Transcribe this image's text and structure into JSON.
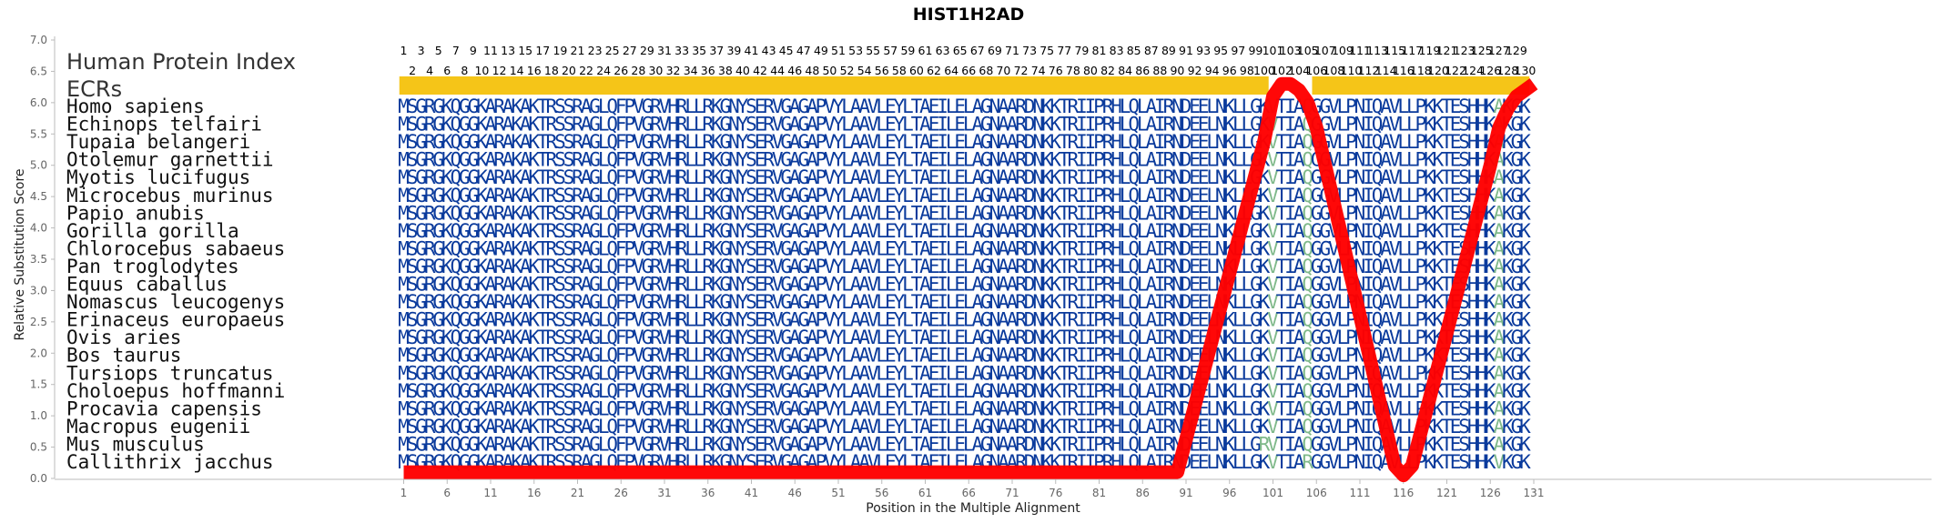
{
  "chart_data": {
    "type": "line",
    "title": "HIST1H2AD",
    "xlabel": "Position in the Multiple Alignment",
    "ylabel": "Relative Substitution Score",
    "ylim": [
      0,
      7
    ],
    "xlim": [
      1,
      131
    ],
    "yticks": [
      "0.0",
      "0.5",
      "1.0",
      "1.5",
      "2.0",
      "2.5",
      "3.0",
      "3.5",
      "4.0",
      "4.5",
      "5.0",
      "5.5",
      "6.0",
      "6.5",
      "7.0"
    ],
    "xticks": [
      1,
      6,
      11,
      16,
      21,
      26,
      31,
      36,
      41,
      46,
      51,
      56,
      61,
      66,
      71,
      76,
      81,
      86,
      91,
      96,
      101,
      106,
      111,
      116,
      121,
      126,
      131
    ],
    "legend_header": "Human Protein Index",
    "ecr_label": "ECRs",
    "ecr_color": "#f5c518",
    "ecr_segments": [
      [
        1,
        100
      ],
      [
        106,
        130
      ]
    ],
    "series": [
      {
        "color": "#ff0000",
        "x": [
          1,
          90,
          100,
          101,
          102,
          103,
          104,
          105,
          106,
          115,
          116,
          117,
          126,
          127,
          128,
          129,
          130,
          131
        ],
        "y": [
          0.1,
          0.1,
          5.4,
          6.1,
          6.3,
          6.3,
          6.2,
          6.0,
          5.6,
          0.2,
          0.05,
          0.2,
          5.0,
          5.6,
          5.9,
          6.1,
          6.2,
          6.3
        ]
      }
    ],
    "residue_colors": {
      "conserved": "#0a3a9c",
      "substituted": "#7fb98a"
    },
    "species": [
      "Homo sapiens",
      "Echinops telfairi",
      "Tupaia belangeri",
      "Otolemur garnettii",
      "Myotis lucifugus",
      "Microcebus murinus",
      "Papio anubis",
      "Gorilla gorilla",
      "Chlorocebus sabaeus",
      "Pan troglodytes",
      "Equus caballus",
      "Nomascus leucogenys",
      "Erinaceus europaeus",
      "Ovis aries",
      "Bos taurus",
      "Tursiops truncatus",
      "Choloepus hoffmanni",
      "Procavia capensis",
      "Macropus eugenii",
      "Mus musculus",
      "Callithrix jacchus"
    ],
    "sequences": [
      "MSGRGKQGGKARAKAKTRSSRAGLQFPVGRVHRLLRKGNYSERVGAGAPVYLAAVLEYLTAEILELAGNAARDNKKTRIIPRHLQLAIRNDEELNKLLGKVTIAQGGVLPNIQAVLLPKKTESHHKAKGK",
      "MSGRGKQGGKARAKAKTRSSRAGLQFPVGRVHRLLRKGNYSERVGAGAPVYLAAVLEYLTAEILELAGNAARDNKKTRIIPRHLQLAIRNDEELNKLLGKVTIAQGGVLPNIQAVLLPKKTESHHKAKGK",
      "MSGRGKQGGKARAKAKTRSSRAGLQFPVGRVHRLLRKGNYSERVGAGAPVYLAAVLEYLTAEILELAGNAARDNKKTRIIPRHLQLAIRNDEELNKLLGKVTIAQGGVLPNIQAVLLPKKTESHHKAKGK",
      "MSGRGKQGGKARAKAKTRSSRAGLQFPVGRVHRLLRKGNYSERVGAGAPVYLAAVLEYLTAEILELAGNAARDNKKTRIIPRHLQLAIRNDEELNKLLGKVTIAQGGVLPNIQAVLLPKKTESHHKAKGK",
      "MSGRGKQGGKARAKAKTRSSRAGLQFPVGRVHRLLRKGNYSERVGAGAPVYLAAVLEYLTAEILELAGNAARDNKKTRIIPRHLQLAIRNDEELNKLLGKVTIAQGGVLPNIQAVLLPKKTESHHKAKGK",
      "MSGRGKQGGKARAKAKTRSSRAGLQFPVGRVHRLLRKGNYSERVGAGAPVYLAAVLEYLTAEILELAGNAARDNKKTRIIPRHLQLAIRNDEELNKLLGKVTIAQGGVLPNIQAVLLPKKTESHHKAKGK",
      "MSGRGKQGGKARAKAKTRSSRAGLQFPVGRVHRLLRKGNYSERVGAGAPVYLAAVLEYLTAEILELAGNAARDNKKTRIIPRHLQLAIRNDEELNKLLGKVTIAQGGVLPNIQAVLLPKKTESHHKAKGK",
      "MSGRGKQGGKARAKAKTRSSRAGLQFPVGRVHRLLRKGNYSERVGAGAPVYLAAVLEYLTAEILELAGNAARDNKKTRIIPRHLQLAIRNDEELNKLLGKVTIAQGGVLPNIQAVLLPKKTESHHKAKGK",
      "MSGRGKQGGKARAKAKTRSSRAGLQFPVGRVHRLLRKGNYSERVGAGAPVYLAAVLEYLTAEILELAGNAARDNKKTRIIPRHLQLAIRNDEELNKLLGKVTIAQGGVLPNIQAVLLPKKTESHHKAKGK",
      "MSGRGKQGGKARAKAKTRSSRAGLQFPVGRVHRLLRKGNYSERVGAGAPVYLAAVLEYLTAEILELAGNAARDNKKTRIIPRHLQLAIRNDEELNKLLGKVTIAQGGVLPNIQAVLLPKKTESHHKAKGK",
      "MSGRGKQGGKARAKAKTRSSRAGLQFPVGRVHRLLRKGNYSERVGAGAPVYLAAVLEYLTAEILELAGNAARDNKKTRIIPRHLQLAIRNDEELNKLLGKVTIAQGGVLPNIQAVLLPKKTESHHKAKGK",
      "MSGRGKQGGKARAKAKTRSSRAGLQFPVGRVHRLLRKGNYSERVGAGAPVYLAAVLEYLTAEILELAGNAARDNKKTRIIPRHLQLAIRNDEELNKLLGKVTIAQGGVLPNIQAVLLPKKTESHHKAKGK",
      "MSGRGKQGGKARAKAKTRSSRAGLQFPVGRVHRLLRKGNYSERVGAGAPVYLAAVLEYLTAEILELAGNAARDNKKTRIIPRHLQLAIRNDEELNKLLGKVTIAQGGVLPNIQAVLLPKKTESHHKAKGK",
      "MSGRGKQGGKARAKAKTRSSRAGLQFPVGRVHRLLRKGNYSERVGAGAPVYLAAVLEYLTAEILELAGNAARDNKKTRIIPRHLQLAIRNDEELNKLLGKVTIAQGGVLPNIQAVLLPKKTESHHKAKGK",
      "MSGRGKQGGKARAKAKTRSSRAGLQFPVGRVHRLLRKGNYSERVGAGAPVYLAAVLEYLTAEILELAGNAARDNKKTRIIPRHLQLAIRNDEELNKLLGKVTIAQGGVLPNIQAVLLPKKTESHHKAKGK",
      "MSGRGKQGGKARAKAKTRSSRAGLQFPVGRVHRLLRKGNYSERVGAGAPVYLAAVLEYLTAEILELAGNAARDNKKTRIIPRHLQLAIRNDEELNKLLGKVTIAQGGVLPNIQAVLLPKKTESHHKAKGK",
      "MSGRGKQGGKARAKAKTRSSRAGLQFPVGRVHRLLRKGNYSERVGAGAPVYLAAVLEYLTAEILELAGNAARDNKKTRIIPRHLQLAIRNDEELNKLLGKVTIAQGGVLPNIQAVLLPKKTESHHKAKGK",
      "MSGRGKQGGKARAKAKTRSSRAGLQFPVGRVHRLLRKGNYSERVGAGAPVYLAAVLEYLTAEILELAGNAARDNKKTRIIPRHLQLAIRNDEELNKLLGKVTIAQGGVLPNIQAVLLPKKTESHHKAKGK",
      "MSGRGKQGGKARAKAKTRSSRAGLQFPVGRVHRLLRKGNYSERVGAGAPVYLAAVLEYLTAEILELAGNAARDNKKTRIIPRHLQLAIRNDEELNKLLGKVTIAQGGVLPNIQAVLLPKKTESHHKAKGK",
      "MSGRGKQGGKARAKAKTRSSRAGLQFPVGRVHRLLRKGNYSERVGAGAPVYLAAVLEYLTAEILELAGNAARDNKKTRIIPRHLQLAIRNDEELNKLLGRVTIAQGGVLPNIQAVLLPKKTESHHKAKGK",
      "MSGRGKQGGKARAKAKTRSSRAGLQFPVGRVHRLLRKGNYSERVGAGAPVYLAAVLEYLTAEILELAGNAARDNKKTRIIPRHLQLAIRNDEELNKLLGKVTIARGGVLPNIQAVLLPKKTESHHKVKGK"
    ],
    "highlight_positions": [
      101,
      105,
      127
    ]
  }
}
